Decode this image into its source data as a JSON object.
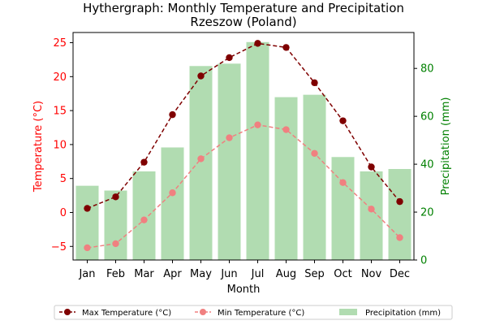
{
  "chart_data": {
    "type": "bar+line",
    "title_line1": "Hythergraph: Monthly Temperature and Precipitation",
    "title_line2": "Rzeszow (Poland)",
    "xlabel": "Month",
    "ylabel_left": "Temperature (°C)",
    "ylabel_right": "Precipitation (mm)",
    "categories": [
      "Jan",
      "Feb",
      "Mar",
      "Apr",
      "May",
      "Jun",
      "Jul",
      "Aug",
      "Sep",
      "Oct",
      "Nov",
      "Dec"
    ],
    "temp_ylim": [
      -7,
      26.5
    ],
    "temp_ticks": [
      -5,
      0,
      5,
      10,
      15,
      20,
      25
    ],
    "precip_ylim": [
      0,
      95
    ],
    "precip_ticks": [
      0,
      20,
      40,
      60,
      80
    ],
    "series": [
      {
        "name": "Max Temperature (°C)",
        "axis": "left",
        "kind": "line",
        "color": "#7f0000",
        "style": "dashed",
        "values": [
          0.6,
          2.3,
          7.4,
          14.4,
          20.1,
          22.8,
          24.9,
          24.3,
          19.1,
          13.5,
          6.7,
          1.6
        ]
      },
      {
        "name": "Min Temperature (°C)",
        "axis": "left",
        "kind": "line",
        "color": "#f08080",
        "style": "dashed",
        "values": [
          -5.2,
          -4.6,
          -1.1,
          2.9,
          7.9,
          11.0,
          12.9,
          12.2,
          8.7,
          4.4,
          0.5,
          -3.7
        ]
      },
      {
        "name": "Precipitation (mm)",
        "axis": "right",
        "kind": "bar",
        "color": "#2ca02c",
        "opacity": 0.37,
        "values": [
          31,
          29,
          37,
          47,
          81,
          82,
          91,
          68,
          69,
          43,
          37,
          38
        ]
      }
    ]
  }
}
